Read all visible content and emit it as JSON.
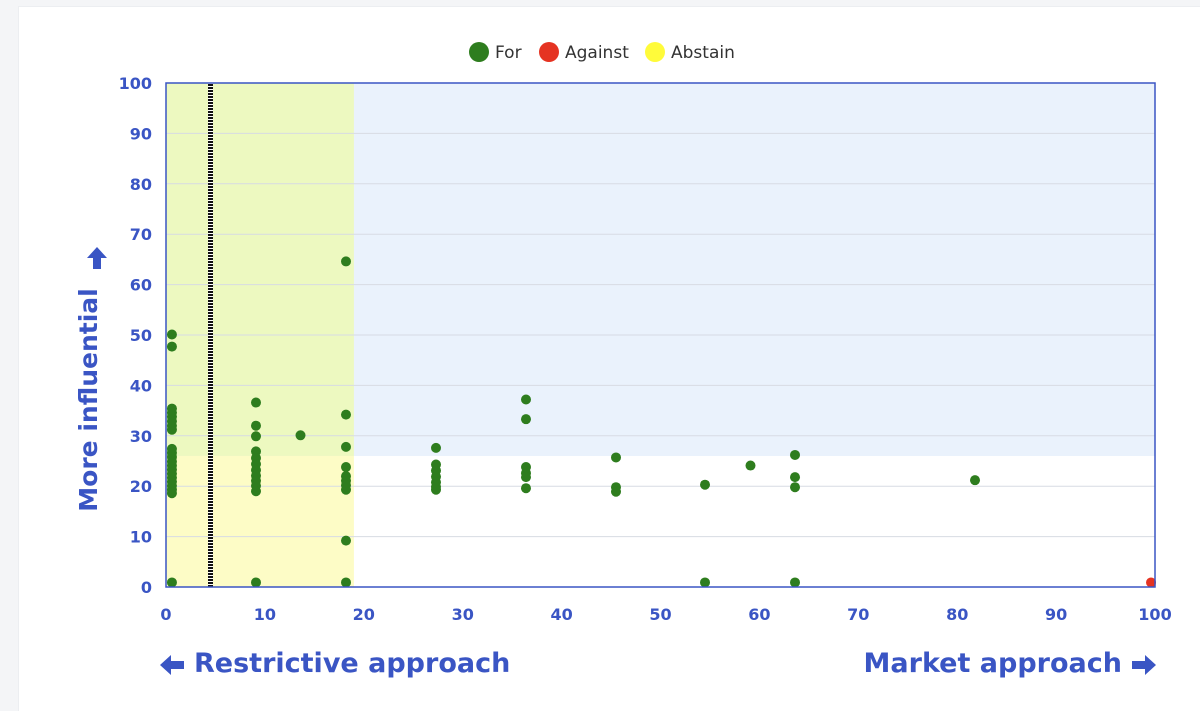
{
  "colors": {
    "axis": "#3a55c4",
    "grid": "#d7dbe3",
    "for": "#2e7d1e",
    "against": "#e53322",
    "abstain": "#fffb3a",
    "zone_blue": "#eaf2fc",
    "zone_green": "#edf9c0",
    "zone_yellow": "#fdfcc6",
    "divider": "#111111"
  },
  "captions": {
    "y": "More influential",
    "x_left": "Restrictive approach",
    "x_right": "Market approach"
  },
  "chart_data": {
    "type": "scatter",
    "xlim": [
      0,
      100
    ],
    "ylim": [
      0,
      100
    ],
    "x_ticks": [
      0,
      10,
      20,
      30,
      40,
      50,
      60,
      70,
      80,
      90,
      100
    ],
    "y_ticks": [
      0,
      10,
      20,
      30,
      40,
      50,
      60,
      70,
      80,
      90,
      100
    ],
    "x_tick_labels": [
      "0",
      "10",
      "20",
      "30",
      "40",
      "50",
      "60",
      "70",
      "80",
      "90",
      "100"
    ],
    "y_tick_labels": [
      "0",
      "10",
      "20",
      "30",
      "40",
      "50",
      "60",
      "70",
      "80",
      "90",
      "100"
    ],
    "ylabel": "More influential",
    "grid": true,
    "legend": {
      "placement": "top-center",
      "entries": [
        "For",
        "Against",
        "Abstain"
      ]
    },
    "regions": [
      {
        "name": "upper-influential",
        "x": [
          0,
          100
        ],
        "y": [
          26,
          100
        ],
        "color": "zone_blue"
      },
      {
        "name": "restrictive-upper",
        "x": [
          0,
          19
        ],
        "y": [
          26,
          100
        ],
        "color": "zone_green"
      },
      {
        "name": "restrictive-lower",
        "x": [
          0,
          19
        ],
        "y": [
          0,
          26
        ],
        "color": "zone_yellow"
      }
    ],
    "reference_line": {
      "x": 4.5
    },
    "series": [
      {
        "name": "For",
        "color": "for",
        "points": [
          [
            0.6,
            50.1
          ],
          [
            0.6,
            47.7
          ],
          [
            0.6,
            35.4
          ],
          [
            0.6,
            34.6
          ],
          [
            0.6,
            33.8
          ],
          [
            0.6,
            32.9
          ],
          [
            0.6,
            32.0
          ],
          [
            0.6,
            31.2
          ],
          [
            0.6,
            27.4
          ],
          [
            0.6,
            26.6
          ],
          [
            0.6,
            25.8
          ],
          [
            0.6,
            24.9
          ],
          [
            0.6,
            24.1
          ],
          [
            0.6,
            23.3
          ],
          [
            0.6,
            22.5
          ],
          [
            0.6,
            21.7
          ],
          [
            0.6,
            20.9
          ],
          [
            0.6,
            20.1
          ],
          [
            0.6,
            19.3
          ],
          [
            0.6,
            18.6
          ],
          [
            0.6,
            0.9
          ],
          [
            9.1,
            36.6
          ],
          [
            9.1,
            32.0
          ],
          [
            9.1,
            29.9
          ],
          [
            9.1,
            26.9
          ],
          [
            9.1,
            25.6
          ],
          [
            9.1,
            24.4
          ],
          [
            9.1,
            23.2
          ],
          [
            9.1,
            22.1
          ],
          [
            9.1,
            21.1
          ],
          [
            9.1,
            20.1
          ],
          [
            9.1,
            19.0
          ],
          [
            9.1,
            0.9
          ],
          [
            13.6,
            30.1
          ],
          [
            18.2,
            64.6
          ],
          [
            18.2,
            34.2
          ],
          [
            18.2,
            27.8
          ],
          [
            18.2,
            23.8
          ],
          [
            18.2,
            22.0
          ],
          [
            18.2,
            21.1
          ],
          [
            18.2,
            20.2
          ],
          [
            18.2,
            19.3
          ],
          [
            18.2,
            9.2
          ],
          [
            18.2,
            0.9
          ],
          [
            27.3,
            27.6
          ],
          [
            27.3,
            24.3
          ],
          [
            27.3,
            23.1
          ],
          [
            27.3,
            21.9
          ],
          [
            27.3,
            20.8
          ],
          [
            27.3,
            19.9
          ],
          [
            27.3,
            19.3
          ],
          [
            36.4,
            37.2
          ],
          [
            36.4,
            33.3
          ],
          [
            36.4,
            23.8
          ],
          [
            36.4,
            22.6
          ],
          [
            36.4,
            21.8
          ],
          [
            36.4,
            19.6
          ],
          [
            45.5,
            25.7
          ],
          [
            45.5,
            19.8
          ],
          [
            45.5,
            18.9
          ],
          [
            54.5,
            20.3
          ],
          [
            54.5,
            0.9
          ],
          [
            59.1,
            24.1
          ],
          [
            63.6,
            26.2
          ],
          [
            63.6,
            21.8
          ],
          [
            63.6,
            19.8
          ],
          [
            63.6,
            0.9
          ],
          [
            81.8,
            21.2
          ]
        ]
      },
      {
        "name": "Against",
        "color": "against",
        "points": [
          [
            99.6,
            0.9
          ]
        ]
      },
      {
        "name": "Abstain",
        "color": "abstain",
        "points": []
      }
    ]
  }
}
